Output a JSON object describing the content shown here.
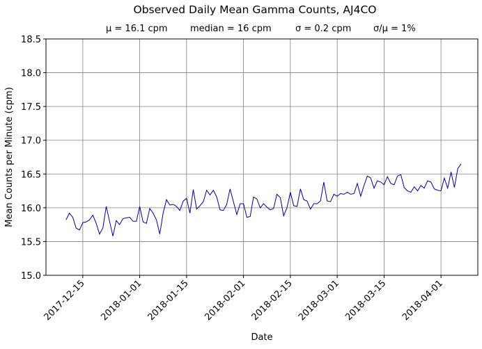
{
  "chart_data": {
    "type": "line",
    "title": "Observed Daily Mean Gamma Counts, AJ4CO",
    "subtitle": [
      "μ = 16.1 cpm",
      "median = 16 cpm",
      "σ = 0.2 cpm",
      "σ/μ = 1%"
    ],
    "xlabel": "Date",
    "ylabel": "Mean Counts per Minute (cpm)",
    "ylim": [
      15.0,
      18.5
    ],
    "xlim": [
      "2017-12-04",
      "2018-04-12"
    ],
    "yticks": [
      "15.0",
      "15.5",
      "16.0",
      "16.5",
      "17.0",
      "17.5",
      "18.0",
      "18.5"
    ],
    "xticks": [
      "2017-12-15",
      "2018-01-01",
      "2018-01-15",
      "2018-02-01",
      "2018-02-15",
      "2018-03-01",
      "2018-03-15",
      "2018-04-01"
    ],
    "grid": true,
    "line_color": "#00008b",
    "grid_color": "#808080",
    "start_date": "2017-12-10",
    "values": [
      15.82,
      15.92,
      15.86,
      15.7,
      15.67,
      15.78,
      15.79,
      15.82,
      15.89,
      15.77,
      15.61,
      15.7,
      16.02,
      15.8,
      15.58,
      15.81,
      15.75,
      15.84,
      15.85,
      15.86,
      15.8,
      15.8,
      16.02,
      15.79,
      15.77,
      15.99,
      15.92,
      15.82,
      15.61,
      15.92,
      16.12,
      16.04,
      16.05,
      16.02,
      15.96,
      16.1,
      16.14,
      15.92,
      16.27,
      15.98,
      16.03,
      16.09,
      16.26,
      16.19,
      16.26,
      16.16,
      15.97,
      15.96,
      16.05,
      16.28,
      16.09,
      15.9,
      16.06,
      16.06,
      15.86,
      15.87,
      16.16,
      16.13,
      16.0,
      16.06,
      16.01,
      15.97,
      15.99,
      16.2,
      16.15,
      15.88,
      16.0,
      16.23,
      16.03,
      16.02,
      16.28,
      16.12,
      16.1,
      15.98,
      16.06,
      16.06,
      16.1,
      16.38,
      16.1,
      16.09,
      16.2,
      16.17,
      16.21,
      16.2,
      16.23,
      16.2,
      16.21,
      16.36,
      16.17,
      16.33,
      16.47,
      16.44,
      16.29,
      16.4,
      16.38,
      16.34,
      16.46,
      16.36,
      16.34,
      16.47,
      16.49,
      16.3,
      16.25,
      16.23,
      16.31,
      16.25,
      16.33,
      16.29,
      16.4,
      16.38,
      16.28,
      16.26,
      16.25,
      16.44,
      16.29,
      16.53,
      16.3,
      16.58,
      16.65
    ]
  }
}
